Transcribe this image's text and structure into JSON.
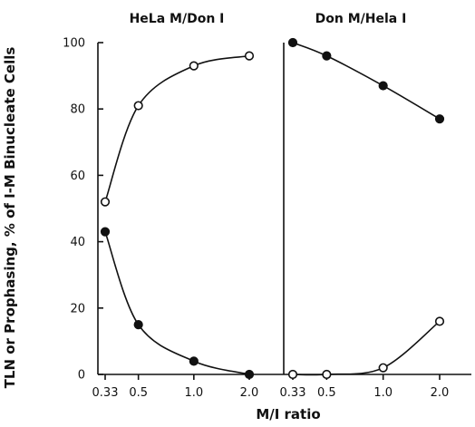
{
  "chart_data": {
    "type": "scatter",
    "ylabel": "TLN or Prophasing, % of I-M Binucleate Cells",
    "xlabel": "M/I ratio",
    "ylim": [
      0,
      100
    ],
    "yticks": [
      "0",
      "20",
      "40",
      "60",
      "80",
      "100"
    ],
    "xscale": "log",
    "grid": false,
    "panels": [
      {
        "title": "HeLa M/Don I",
        "x_tick_labels": [
          "0.33",
          "0.5",
          "1.0",
          "2.0"
        ],
        "x": [
          0.33,
          0.5,
          1.0,
          2.0
        ],
        "series": [
          {
            "marker": "open-circle",
            "values": [
              52,
              81,
              93,
              96
            ]
          },
          {
            "marker": "filled-circle",
            "values": [
              43,
              15,
              4,
              0
            ]
          }
        ]
      },
      {
        "title": "Don M/Hela I",
        "x_tick_labels": [
          "0.33",
          "0.5",
          "1.0",
          "2.0"
        ],
        "x": [
          0.33,
          0.5,
          1.0,
          2.0
        ],
        "series": [
          {
            "marker": "filled-circle",
            "values": [
              100,
              96,
              87,
              77
            ]
          },
          {
            "marker": "open-circle",
            "values": [
              0,
              0,
              2,
              16
            ]
          }
        ]
      }
    ]
  }
}
